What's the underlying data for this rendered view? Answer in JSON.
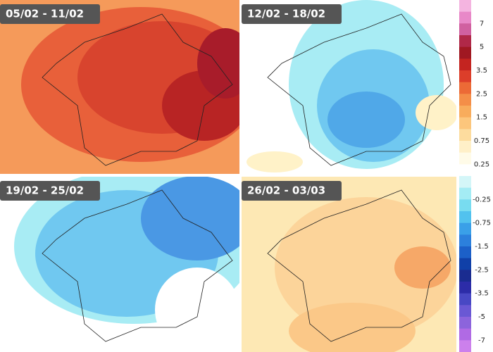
{
  "panels": [
    {
      "label": "05/02 - 11/02"
    },
    {
      "label": "12/02 - 18/02"
    },
    {
      "label": "19/02 - 25/02"
    },
    {
      "label": "26/02 - 03/03"
    }
  ],
  "legend": {
    "labels": [
      "7",
      "5",
      "3.5",
      "2.5",
      "1.5",
      "0.75",
      "0.25",
      "-0.25",
      "-0.75",
      "-1.5",
      "-2.5",
      "-3.5",
      "-5",
      "-7"
    ]
  }
}
